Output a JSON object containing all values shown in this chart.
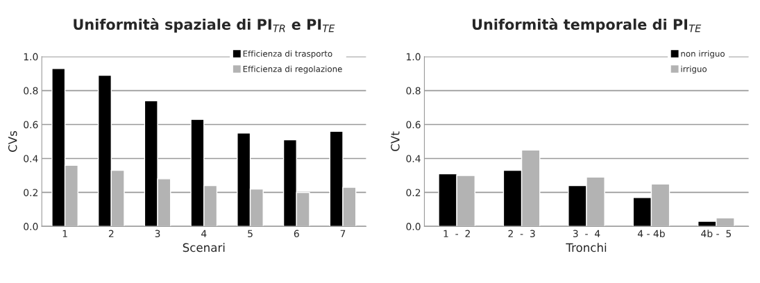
{
  "chart_data": [
    {
      "type": "bar",
      "title": "Uniformità spaziale di PI$_{TR}$ e PI$_{TE}$",
      "xlabel": "Scenari",
      "ylabel": "CVs",
      "categories": [
        "1",
        "2",
        "3",
        "4",
        "5",
        "6",
        "7"
      ],
      "series": [
        {
          "name": "Efficienza di trasporto",
          "color": "#000000",
          "values": [
            0.93,
            0.89,
            0.74,
            0.63,
            0.55,
            0.51,
            0.56
          ]
        },
        {
          "name": "Efficienza di regolazione",
          "color": "#b3b3b3",
          "values": [
            0.36,
            0.33,
            0.28,
            0.24,
            0.22,
            0.2,
            0.23
          ]
        }
      ],
      "ylim": [
        0,
        1
      ],
      "yticks": [
        {
          "value": 0,
          "label": "0.0"
        },
        {
          "value": 0.2,
          "label": "0.2"
        },
        {
          "value": 0.4,
          "label": "0.4"
        },
        {
          "value": 0.6,
          "label": "0.6"
        },
        {
          "value": 0.8,
          "label": "0.8"
        },
        {
          "value": 1,
          "label": "1.0"
        }
      ],
      "grid": "y",
      "legend": "top right"
    },
    {
      "type": "bar",
      "title": "Uniformità temporale di PI$_{TE}$",
      "xlabel": "Tronchi",
      "ylabel": "CVt",
      "categories": [
        "1  -  2",
        "2  -  3",
        "3  -  4",
        "4 - 4b",
        "4b -  5"
      ],
      "series": [
        {
          "name": "non irriguo",
          "color": "#000000",
          "values": [
            0.31,
            0.33,
            0.24,
            0.17,
            0.03
          ]
        },
        {
          "name": "irriguo",
          "color": "#b3b3b3",
          "values": [
            0.3,
            0.45,
            0.29,
            0.25,
            0.05
          ]
        }
      ],
      "ylim": [
        0,
        1
      ],
      "yticks": [
        {
          "value": 0,
          "label": "0.0"
        },
        {
          "value": 0.2,
          "label": "0.2"
        },
        {
          "value": 0.4,
          "label": "0.4"
        },
        {
          "value": 0.6,
          "label": "0.6"
        },
        {
          "value": 0.8,
          "label": "0.8"
        },
        {
          "value": 1,
          "label": "1.0"
        }
      ],
      "grid": "y",
      "legend": "top right"
    }
  ]
}
